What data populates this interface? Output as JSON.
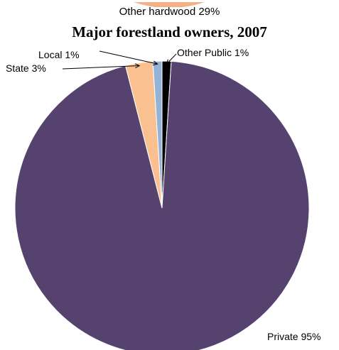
{
  "header_text": "Other hardwood 29%",
  "chart_data": {
    "type": "pie",
    "title": "Major forestland owners, 2007",
    "slices": [
      {
        "label": "Private 95%",
        "name": "Private",
        "value": 95,
        "color": "#56426E"
      },
      {
        "label": "State 3%",
        "name": "State",
        "value": 3,
        "color": "#FAC090"
      },
      {
        "label": "Local 1%",
        "name": "Local",
        "value": 1,
        "color": "#95B3D7"
      },
      {
        "label": "Other Public 1%",
        "name": "Other Public",
        "value": 1,
        "color": "#000000"
      }
    ],
    "start_angle_deg": 0,
    "direction": "clockwise",
    "order_from_top": [
      "Other Public",
      "Private",
      "State",
      "Local"
    ]
  },
  "colors": {
    "background": "#FFFFFF",
    "top_arc": "#F4B183"
  }
}
